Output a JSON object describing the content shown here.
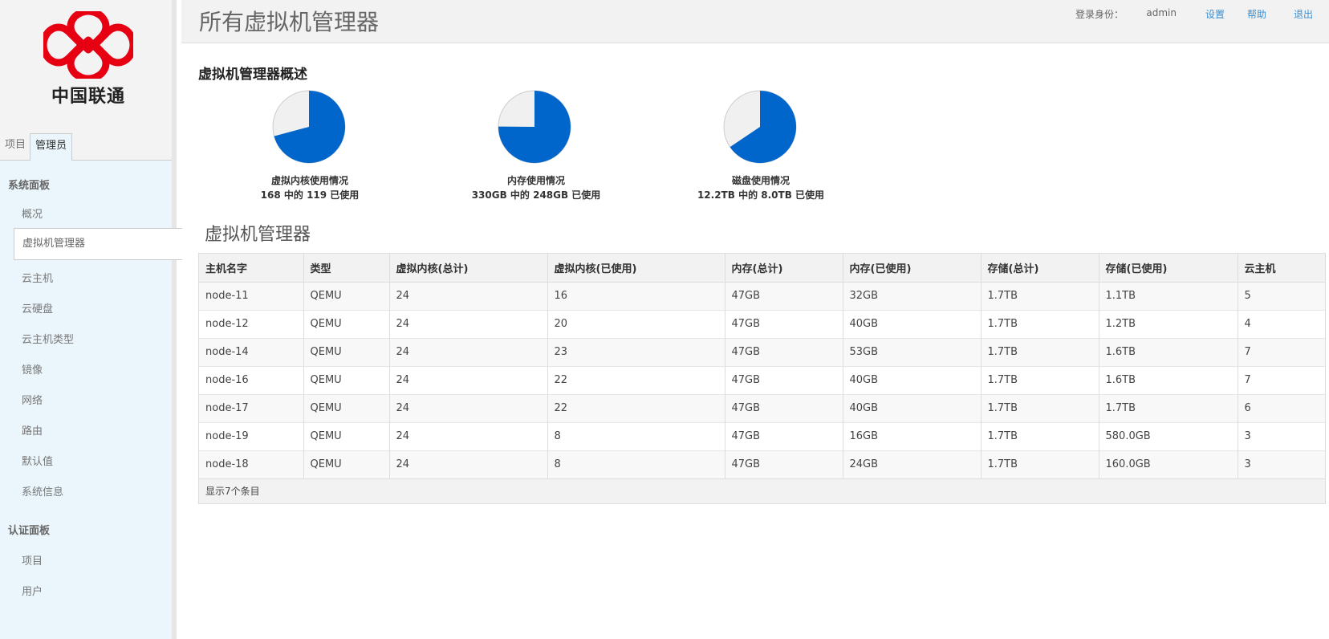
{
  "brand": {
    "logo_text": "中国联通",
    "brand_color": "#e60012"
  },
  "sidebar": {
    "tabs": [
      {
        "label": "项目"
      },
      {
        "label": "管理员"
      }
    ],
    "sections": [
      {
        "title": "系统面板",
        "items": [
          {
            "label": "概况"
          },
          {
            "label": "虚拟机管理器"
          },
          {
            "label": "云主机"
          },
          {
            "label": "云硬盘"
          },
          {
            "label": "云主机类型"
          },
          {
            "label": "镜像"
          },
          {
            "label": "网络"
          },
          {
            "label": "路由"
          },
          {
            "label": "默认值"
          },
          {
            "label": "系统信息"
          }
        ]
      },
      {
        "title": "认证面板",
        "items": [
          {
            "label": "项目"
          },
          {
            "label": "用户"
          }
        ]
      }
    ]
  },
  "header": {
    "title": "所有虚拟机管理器",
    "user_label": "登录身份：",
    "user_name": "admin",
    "links": [
      {
        "label": "设置"
      },
      {
        "label": "帮助"
      },
      {
        "label": "退出"
      }
    ]
  },
  "overview": {
    "title": "虚拟机管理器概述",
    "colors": {
      "used": "#0066cc",
      "free": "#f0f0f0"
    },
    "charts": [
      {
        "title": "虚拟内核使用情况",
        "detail": "168 中的 119 已使用",
        "used": 119,
        "total": 168
      },
      {
        "title": "内存使用情况",
        "detail": "330GB 中的 248GB 已使用",
        "used": 248,
        "total": 330
      },
      {
        "title": "磁盘使用情况",
        "detail": "12.2TB 中的 8.0TB 已使用",
        "used": 8.0,
        "total": 12.2
      }
    ]
  },
  "table": {
    "title": "虚拟机管理器",
    "columns": [
      "主机名字",
      "类型",
      "虚拟内核(总计)",
      "虚拟内核(已使用)",
      "内存(总计)",
      "内存(已使用)",
      "存储(总计)",
      "存储(已使用)",
      "云主机"
    ],
    "rows": [
      [
        "node-11",
        "QEMU",
        "24",
        "16",
        "47GB",
        "32GB",
        "1.7TB",
        "1.1TB",
        "5"
      ],
      [
        "node-12",
        "QEMU",
        "24",
        "20",
        "47GB",
        "40GB",
        "1.7TB",
        "1.2TB",
        "4"
      ],
      [
        "node-14",
        "QEMU",
        "24",
        "23",
        "47GB",
        "53GB",
        "1.7TB",
        "1.6TB",
        "7"
      ],
      [
        "node-16",
        "QEMU",
        "24",
        "22",
        "47GB",
        "40GB",
        "1.7TB",
        "1.6TB",
        "7"
      ],
      [
        "node-17",
        "QEMU",
        "24",
        "22",
        "47GB",
        "40GB",
        "1.7TB",
        "1.7TB",
        "6"
      ],
      [
        "node-19",
        "QEMU",
        "24",
        "8",
        "47GB",
        "16GB",
        "1.7TB",
        "580.0GB",
        "3"
      ],
      [
        "node-18",
        "QEMU",
        "24",
        "8",
        "47GB",
        "24GB",
        "1.7TB",
        "160.0GB",
        "3"
      ]
    ],
    "footer": "显示7个条目"
  }
}
